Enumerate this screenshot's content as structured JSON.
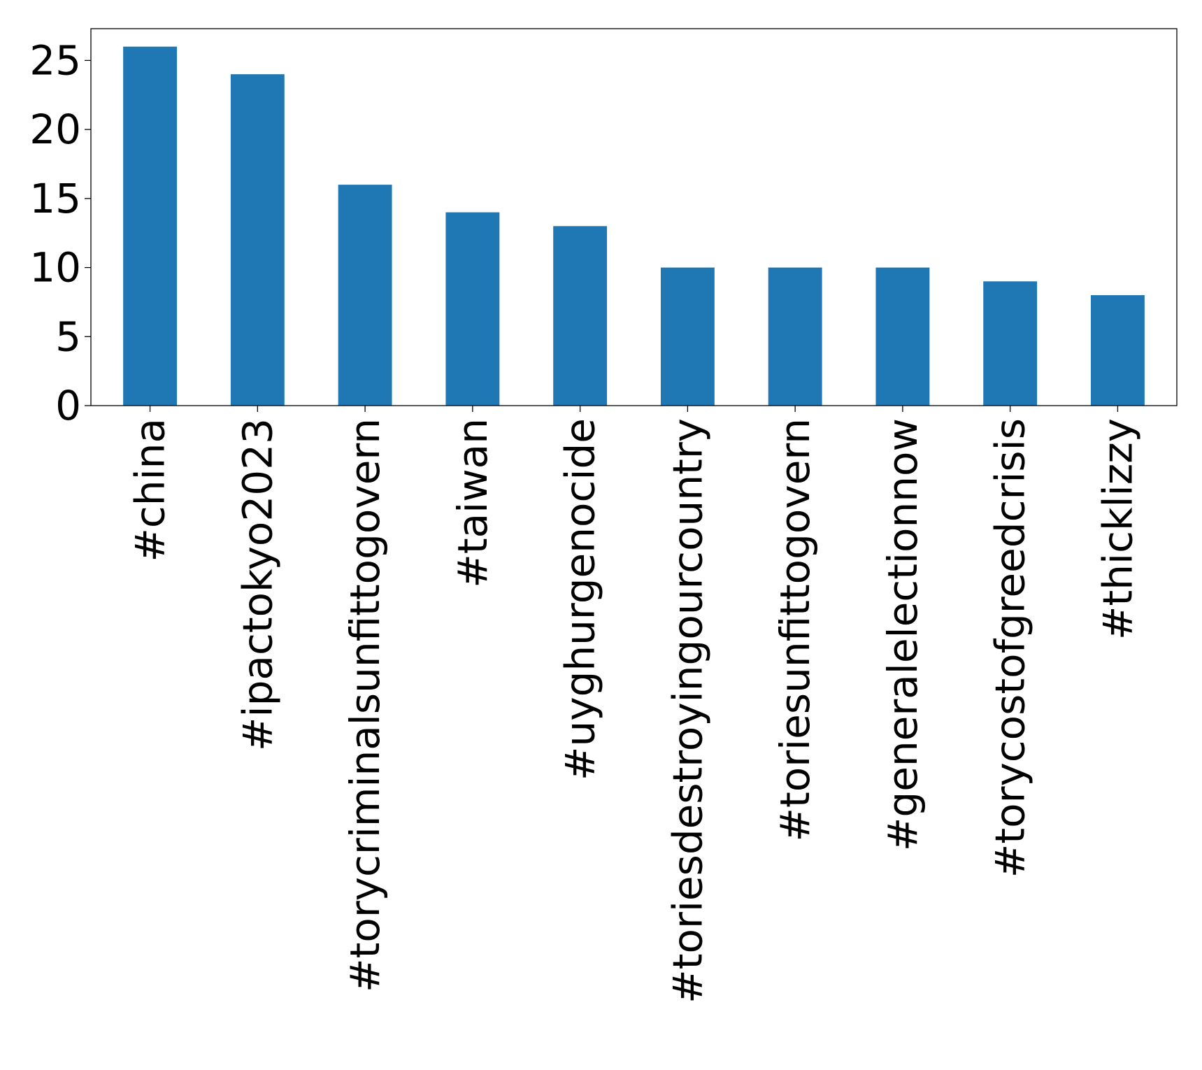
{
  "chart_data": {
    "type": "bar",
    "title": "",
    "xlabel": "",
    "ylabel": "",
    "categories": [
      "#china",
      "#ipactokyo2023",
      "#torycriminalsunfittogovern",
      "#taiwan",
      "#uyghurgenocide",
      "#toriesdestroyingourcountry",
      "#toriesunfittogovern",
      "#generalelectionnow",
      "#torycostofgreedcrisis",
      "#thicklizzy"
    ],
    "values": [
      26,
      24,
      16,
      14,
      13,
      10,
      10,
      10,
      9,
      8
    ],
    "ylim": [
      0,
      27.3
    ],
    "yticks": [
      0,
      5,
      10,
      15,
      20,
      25
    ],
    "x_tick_rotation": "vertical",
    "grid": false,
    "legend": "none",
    "bar_color": "#1f77b4"
  }
}
